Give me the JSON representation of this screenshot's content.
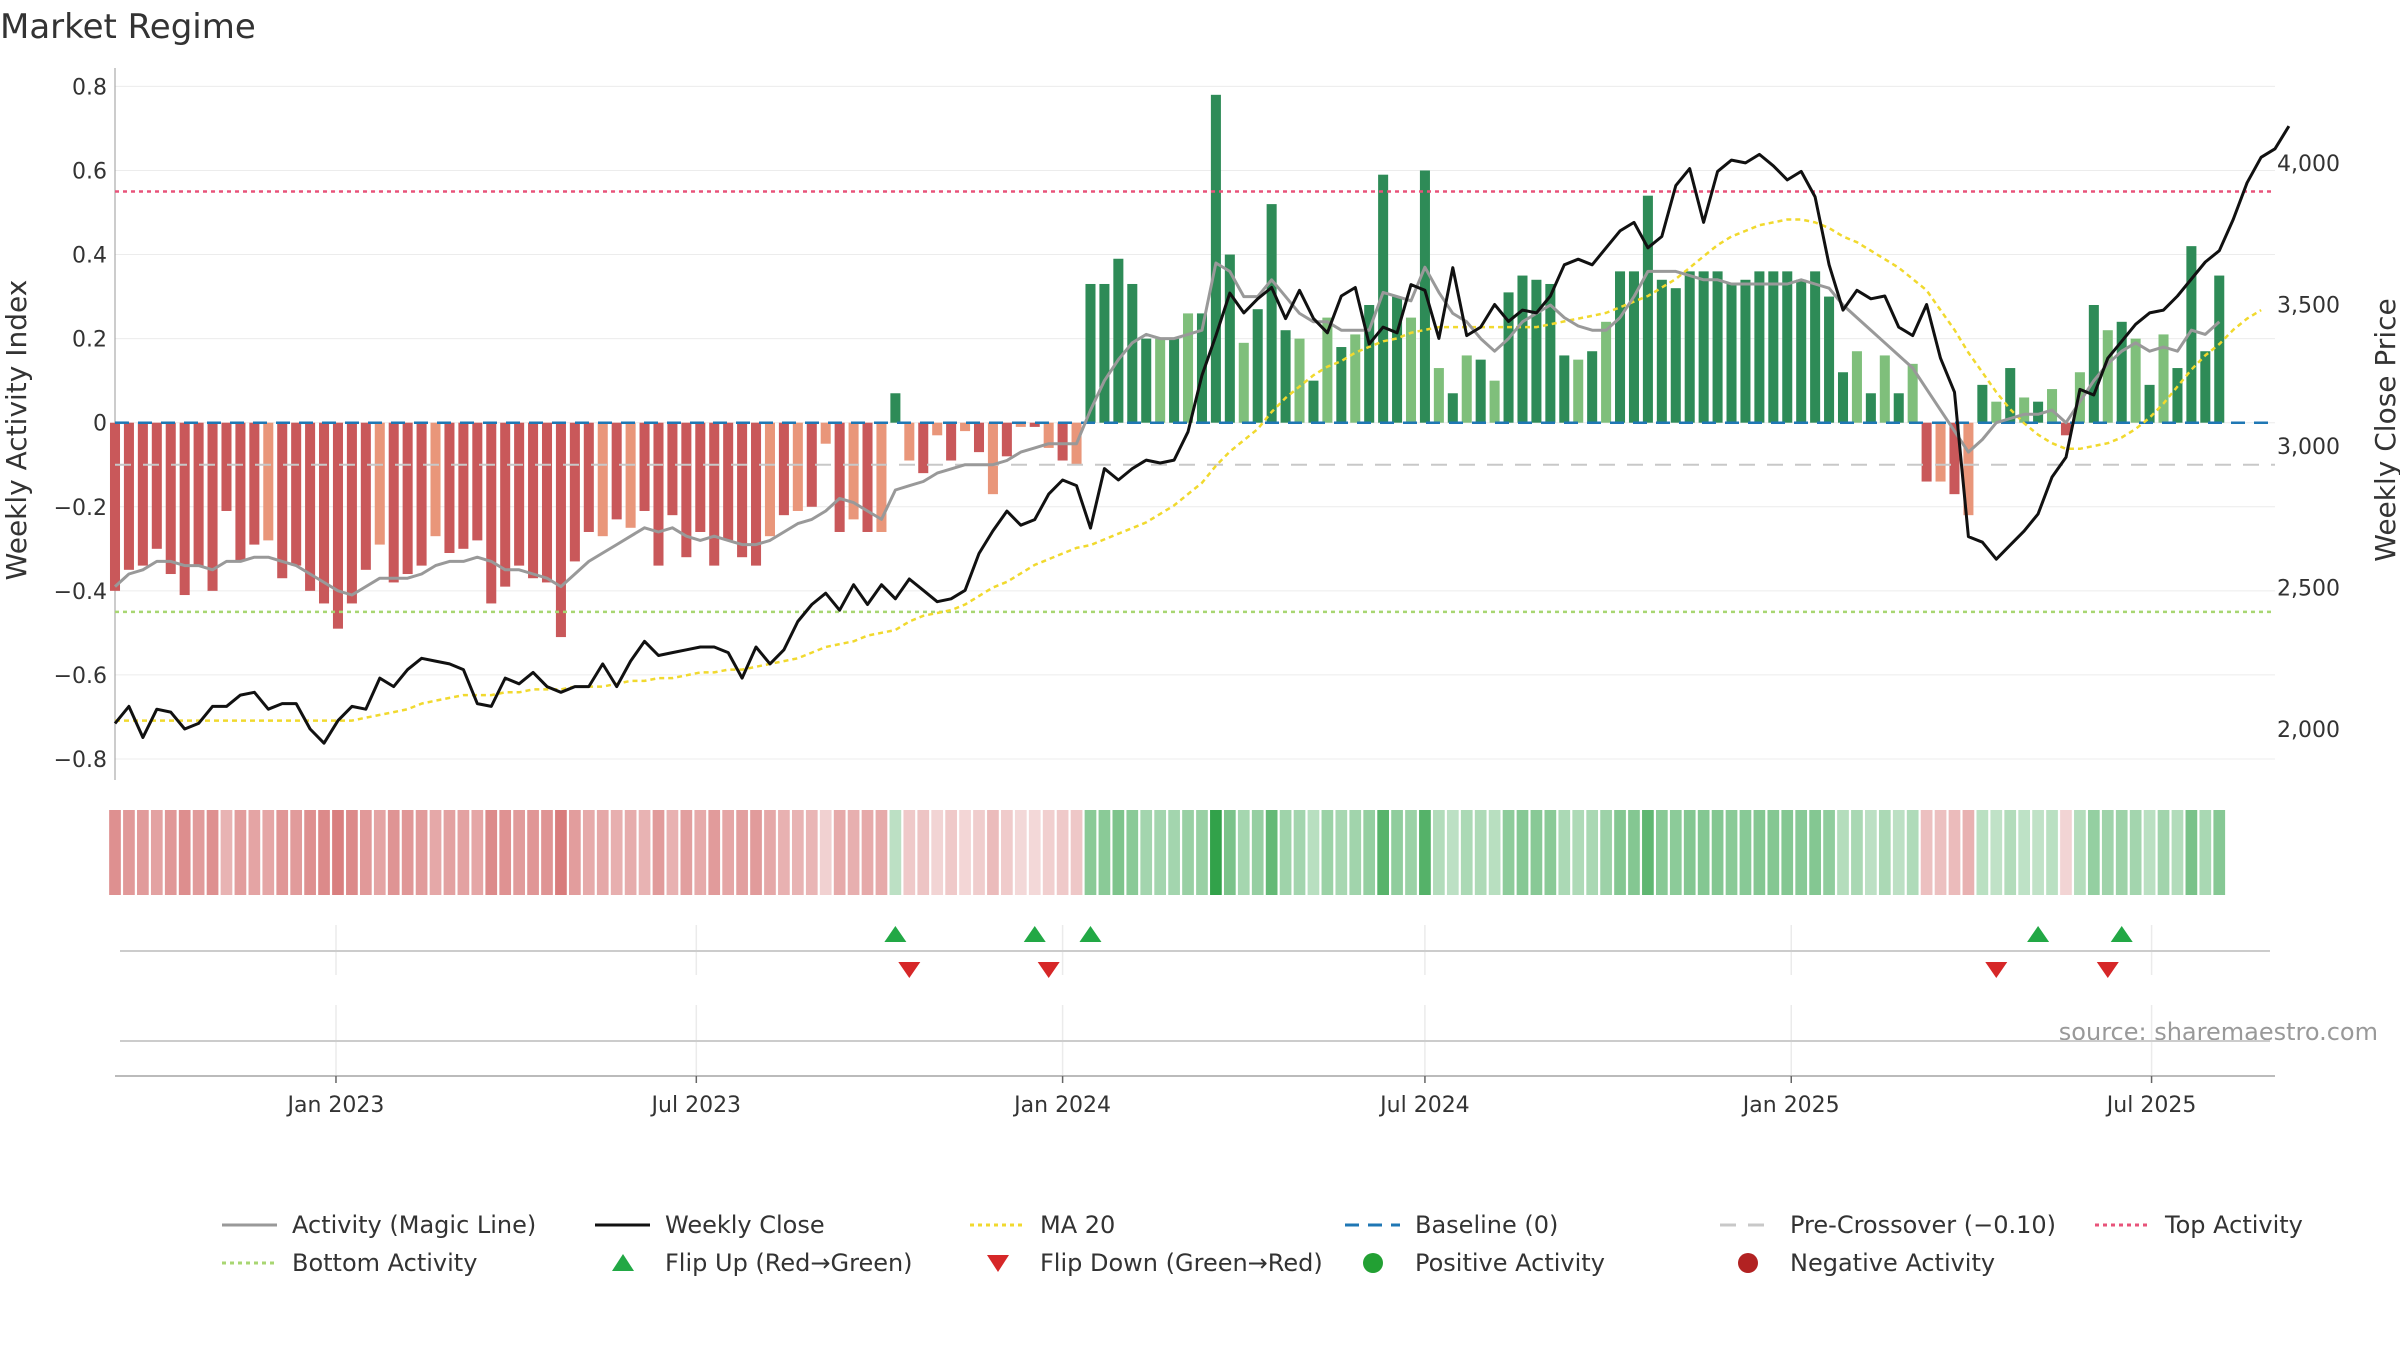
{
  "title": "Market Regime",
  "source": "source: sharemaestro.com",
  "colors": {
    "pos_strong": "#2e8b57",
    "pos_light": "#7fbf7b",
    "neg_strong": "#c9585a",
    "neg_light": "#e9967a",
    "activity_line": "#999999",
    "close_line": "#111111",
    "ma20": "#f1d92e",
    "baseline": "#1f77b4",
    "pre_crossover": "#c8c8c8",
    "top_activity": "#e8537a",
    "bottom_activity": "#a8d672",
    "flip_up": "#22a845",
    "flip_down": "#d62728",
    "positive_dot": "#22a033",
    "negative_dot": "#b22222"
  },
  "chart_data": {
    "type": "bar",
    "title": "Market Regime",
    "ylabel_left": "Weekly Activity Index",
    "ylabel_right": "Weekly Close Price",
    "ylim_left": [
      -0.85,
      0.82
    ],
    "ylim_right": [
      1820,
      4300
    ],
    "yticks_left": [
      "0.8",
      "0.6",
      "0.4",
      "0.2",
      "0",
      "−0.2",
      "−0.4",
      "−0.6",
      "−0.8"
    ],
    "yticks_left_values": [
      0.8,
      0.6,
      0.4,
      0.2,
      0,
      -0.2,
      -0.4,
      -0.6,
      -0.8
    ],
    "yticks_right": [
      "4,000",
      "3,500",
      "3,000",
      "2,500",
      "2,000"
    ],
    "yticks_right_values": [
      4000,
      3500,
      3000,
      2500,
      2000
    ],
    "x_date_start": "2022-09-12",
    "x_date_end": "2025-09-01",
    "xticks": [
      {
        "label": "Jan 2023",
        "date": "2023-01-01"
      },
      {
        "label": "Jul 2023",
        "date": "2023-07-01"
      },
      {
        "label": "Jan 2024",
        "date": "2024-01-01"
      },
      {
        "label": "Jul 2024",
        "date": "2024-07-01"
      },
      {
        "label": "Jan 2025",
        "date": "2025-01-01"
      },
      {
        "label": "Jul 2025",
        "date": "2025-07-01"
      }
    ],
    "reference_lines": {
      "baseline": 0,
      "pre_crossover": -0.1,
      "top_activity": 0.55,
      "bottom_activity": -0.45
    },
    "activity": [
      -0.4,
      -0.35,
      -0.34,
      -0.3,
      -0.36,
      -0.41,
      -0.34,
      -0.4,
      -0.21,
      -0.33,
      -0.29,
      -0.28,
      -0.37,
      -0.34,
      -0.4,
      -0.43,
      -0.49,
      -0.43,
      -0.35,
      -0.29,
      -0.38,
      -0.36,
      -0.34,
      -0.27,
      -0.31,
      -0.3,
      -0.28,
      -0.43,
      -0.39,
      -0.34,
      -0.37,
      -0.38,
      -0.51,
      -0.33,
      -0.26,
      -0.27,
      -0.23,
      -0.25,
      -0.21,
      -0.34,
      -0.22,
      -0.32,
      -0.26,
      -0.34,
      -0.28,
      -0.32,
      -0.34,
      -0.27,
      -0.22,
      -0.21,
      -0.2,
      -0.05,
      -0.26,
      -0.23,
      -0.26,
      -0.26,
      0.07,
      -0.09,
      -0.12,
      -0.03,
      -0.09,
      -0.02,
      -0.07,
      -0.17,
      -0.08,
      -0.01,
      -0.01,
      -0.06,
      -0.09,
      -0.1,
      0.33,
      0.33,
      0.39,
      0.33,
      0.2,
      0.2,
      0.2,
      0.26,
      0.26,
      0.78,
      0.4,
      0.19,
      0.27,
      0.52,
      0.22,
      0.2,
      0.1,
      0.25,
      0.18,
      0.21,
      0.28,
      0.59,
      0.3,
      0.25,
      0.6,
      0.13,
      0.07,
      0.16,
      0.15,
      0.1,
      0.31,
      0.35,
      0.34,
      0.33,
      0.16,
      0.15,
      0.17,
      0.24,
      0.36,
      0.36,
      0.54,
      0.34,
      0.32,
      0.36,
      0.36,
      0.36,
      0.33,
      0.34,
      0.36,
      0.36,
      0.36,
      0.34,
      0.36,
      0.3,
      0.12,
      0.17,
      0.07,
      0.16,
      0.07,
      0.14,
      -0.14,
      -0.14,
      -0.17,
      -0.22,
      0.09,
      0.05,
      0.13,
      0.06,
      0.05,
      0.08,
      -0.03,
      0.12,
      0.28,
      0.22,
      0.24,
      0.2,
      0.09,
      0.21,
      0.13,
      0.42,
      0.17,
      0.35
    ],
    "activity_magic_line": [
      -0.39,
      -0.36,
      -0.35,
      -0.33,
      -0.33,
      -0.34,
      -0.34,
      -0.35,
      -0.33,
      -0.33,
      -0.32,
      -0.32,
      -0.33,
      -0.34,
      -0.36,
      -0.38,
      -0.4,
      -0.41,
      -0.39,
      -0.37,
      -0.37,
      -0.37,
      -0.36,
      -0.34,
      -0.33,
      -0.33,
      -0.32,
      -0.33,
      -0.35,
      -0.35,
      -0.36,
      -0.37,
      -0.39,
      -0.36,
      -0.33,
      -0.31,
      -0.29,
      -0.27,
      -0.25,
      -0.26,
      -0.25,
      -0.27,
      -0.28,
      -0.27,
      -0.28,
      -0.29,
      -0.29,
      -0.28,
      -0.26,
      -0.24,
      -0.23,
      -0.21,
      -0.18,
      -0.19,
      -0.21,
      -0.23,
      -0.16,
      -0.15,
      -0.14,
      -0.12,
      -0.11,
      -0.1,
      -0.1,
      -0.1,
      -0.09,
      -0.07,
      -0.06,
      -0.05,
      -0.05,
      -0.05,
      0.03,
      0.1,
      0.15,
      0.19,
      0.21,
      0.2,
      0.2,
      0.21,
      0.22,
      0.38,
      0.36,
      0.3,
      0.3,
      0.34,
      0.3,
      0.26,
      0.24,
      0.24,
      0.22,
      0.22,
      0.22,
      0.31,
      0.3,
      0.29,
      0.37,
      0.31,
      0.26,
      0.24,
      0.2,
      0.17,
      0.2,
      0.24,
      0.26,
      0.28,
      0.25,
      0.23,
      0.22,
      0.22,
      0.25,
      0.3,
      0.36,
      0.36,
      0.36,
      0.35,
      0.34,
      0.34,
      0.33,
      0.33,
      0.33,
      0.33,
      0.33,
      0.34,
      0.33,
      0.32,
      0.28,
      0.25,
      0.22,
      0.19,
      0.16,
      0.13,
      0.08,
      0.03,
      -0.02,
      -0.07,
      -0.04,
      0.0,
      0.01,
      0.02,
      0.02,
      0.03,
      0.0,
      0.05,
      0.1,
      0.14,
      0.17,
      0.19,
      0.17,
      0.18,
      0.17,
      0.22,
      0.21,
      0.24
    ],
    "weekly_close": [
      2020,
      2080,
      1970,
      2070,
      2060,
      2000,
      2020,
      2080,
      2080,
      2120,
      2130,
      2070,
      2090,
      2090,
      2000,
      1950,
      2030,
      2080,
      2070,
      2180,
      2150,
      2210,
      2250,
      2240,
      2230,
      2210,
      2090,
      2080,
      2180,
      2160,
      2200,
      2150,
      2130,
      2150,
      2150,
      2230,
      2150,
      2240,
      2310,
      2260,
      2270,
      2280,
      2290,
      2290,
      2270,
      2180,
      2290,
      2230,
      2280,
      2380,
      2440,
      2480,
      2420,
      2510,
      2440,
      2510,
      2460,
      2530,
      2490,
      2450,
      2460,
      2490,
      2620,
      2700,
      2770,
      2720,
      2740,
      2830,
      2880,
      2860,
      2710,
      2920,
      2880,
      2920,
      2950,
      2940,
      2950,
      3050,
      3250,
      3390,
      3540,
      3470,
      3520,
      3560,
      3450,
      3550,
      3450,
      3400,
      3530,
      3560,
      3360,
      3420,
      3400,
      3570,
      3550,
      3380,
      3630,
      3390,
      3420,
      3500,
      3440,
      3480,
      3470,
      3530,
      3640,
      3660,
      3640,
      3700,
      3760,
      3790,
      3700,
      3740,
      3920,
      3980,
      3790,
      3970,
      4010,
      4000,
      4030,
      3990,
      3940,
      3970,
      3880,
      3640,
      3480,
      3550,
      3520,
      3530,
      3420,
      3390,
      3500,
      3310,
      3190,
      2680,
      2660,
      2600,
      2650,
      2700,
      2760,
      2890,
      2960,
      3200,
      3180,
      3310,
      3370,
      3430,
      3470,
      3480,
      3530,
      3590,
      3650,
      3690,
      3800,
      3930,
      4020,
      4050,
      4130
    ],
    "ma20": [
      2030,
      2030,
      2030,
      2030,
      2030,
      2030,
      2030,
      2030,
      2030,
      2030,
      2030,
      2030,
      2030,
      2030,
      2030,
      2030,
      2030,
      2030,
      2040,
      2050,
      2060,
      2070,
      2090,
      2100,
      2110,
      2120,
      2120,
      2120,
      2130,
      2130,
      2140,
      2140,
      2140,
      2150,
      2150,
      2150,
      2160,
      2170,
      2170,
      2180,
      2180,
      2190,
      2200,
      2200,
      2210,
      2210,
      2220,
      2230,
      2240,
      2250,
      2270,
      2290,
      2300,
      2310,
      2330,
      2340,
      2350,
      2380,
      2400,
      2410,
      2420,
      2440,
      2470,
      2500,
      2520,
      2550,
      2580,
      2600,
      2620,
      2640,
      2650,
      2670,
      2690,
      2710,
      2730,
      2760,
      2790,
      2830,
      2870,
      2930,
      2980,
      3020,
      3060,
      3120,
      3170,
      3210,
      3250,
      3280,
      3300,
      3330,
      3350,
      3370,
      3380,
      3400,
      3410,
      3420,
      3420,
      3420,
      3420,
      3420,
      3420,
      3420,
      3420,
      3430,
      3440,
      3450,
      3460,
      3470,
      3490,
      3510,
      3530,
      3560,
      3590,
      3630,
      3670,
      3710,
      3740,
      3760,
      3780,
      3790,
      3800,
      3800,
      3790,
      3770,
      3740,
      3720,
      3690,
      3660,
      3630,
      3590,
      3550,
      3480,
      3410,
      3330,
      3260,
      3190,
      3130,
      3080,
      3040,
      3010,
      2990,
      2990,
      3000,
      3010,
      3030,
      3060,
      3100,
      3150,
      3210,
      3270,
      3320,
      3360,
      3410,
      3450,
      3480
    ],
    "flips_up_index": [
      56,
      66,
      70,
      138,
      144
    ],
    "flips_down_index": [
      57,
      67,
      135,
      143
    ],
    "legend": [
      {
        "label": "Activity (Magic Line)",
        "kind": "line",
        "color": "#999999",
        "dash": "solid"
      },
      {
        "label": "Weekly Close",
        "kind": "line",
        "color": "#111111",
        "dash": "solid"
      },
      {
        "label": "MA 20",
        "kind": "line",
        "color": "#f1d92e",
        "dash": "dotted"
      },
      {
        "label": "Baseline (0)",
        "kind": "line",
        "color": "#1f77b4",
        "dash": "dashed"
      },
      {
        "label": "Pre-Crossover (−0.10)",
        "kind": "line",
        "color": "#c8c8c8",
        "dash": "longdash"
      },
      {
        "label": "Top Activity",
        "kind": "line",
        "color": "#e8537a",
        "dash": "dotted"
      },
      {
        "label": "Bottom Activity",
        "kind": "line",
        "color": "#a8d672",
        "dash": "dotted"
      },
      {
        "label": "Flip Up (Red→Green)",
        "kind": "triangle-up",
        "color": "#22a845"
      },
      {
        "label": "Flip Down (Green→Red)",
        "kind": "triangle-down",
        "color": "#d62728"
      },
      {
        "label": "Positive Activity",
        "kind": "dot",
        "color": "#22a033"
      },
      {
        "label": "Negative Activity",
        "kind": "dot",
        "color": "#b22222"
      }
    ]
  }
}
